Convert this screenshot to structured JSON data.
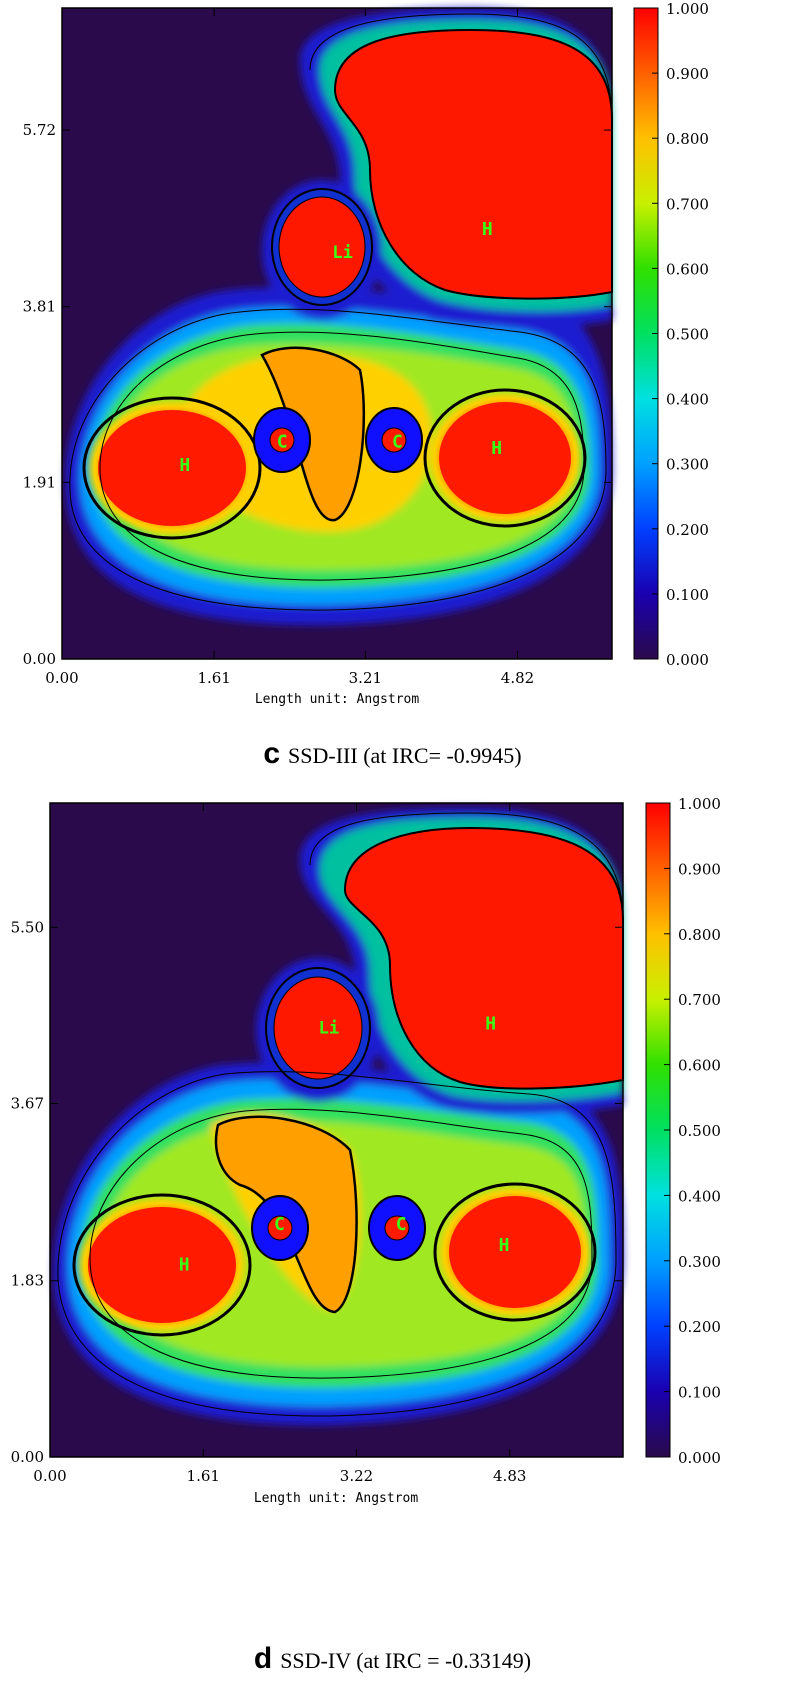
{
  "chart_data": [
    {
      "type": "heatmap",
      "title": "",
      "xlabel": "Length unit: Angstrom",
      "ylabel": "",
      "x_ticks": [
        "0.00",
        "1.61",
        "3.21",
        "4.82"
      ],
      "y_ticks": [
        "0.00",
        "1.91",
        "3.81",
        "5.72"
      ],
      "xlim": [
        0.0,
        5.82
      ],
      "ylim": [
        0.0,
        7.04
      ],
      "colorbar_ticks": [
        "0.000",
        "0.100",
        "0.200",
        "0.300",
        "0.400",
        "0.500",
        "0.600",
        "0.700",
        "0.800",
        "0.900",
        "1.000"
      ],
      "colorbar_range": [
        0.0,
        1.0
      ],
      "atoms": [
        {
          "label": "Li",
          "x": 2.97,
          "y": 4.4
        },
        {
          "label": "H",
          "x": 4.5,
          "y": 4.65
        },
        {
          "label": "C",
          "x": 2.33,
          "y": 2.35
        },
        {
          "label": "C",
          "x": 3.55,
          "y": 2.35
        },
        {
          "label": "H",
          "x": 1.3,
          "y": 2.1
        },
        {
          "label": "H",
          "x": 4.6,
          "y": 2.28
        }
      ],
      "caption_letter": "c",
      "caption": "SSD-III (at IRC=  -0.9945)"
    },
    {
      "type": "heatmap",
      "title": "",
      "xlabel": "Length unit: Angstrom",
      "ylabel": "",
      "x_ticks": [
        "0.00",
        "1.61",
        "3.22",
        "4.83"
      ],
      "y_ticks": [
        "0.00",
        "1.83",
        "3.67",
        "5.50"
      ],
      "xlim": [
        0.0,
        6.02
      ],
      "ylim": [
        0.0,
        6.79
      ],
      "colorbar_ticks": [
        "0.000",
        "0.100",
        "0.200",
        "0.300",
        "0.400",
        "0.500",
        "0.600",
        "0.700",
        "0.800",
        "0.900",
        "1.000"
      ],
      "colorbar_range": [
        0.0,
        1.0
      ],
      "atoms": [
        {
          "label": "Li",
          "x": 2.93,
          "y": 4.46
        },
        {
          "label": "H",
          "x": 4.63,
          "y": 4.5
        },
        {
          "label": "C",
          "x": 2.41,
          "y": 2.42
        },
        {
          "label": "C",
          "x": 3.69,
          "y": 2.42
        },
        {
          "label": "H",
          "x": 1.41,
          "y": 2.0
        },
        {
          "label": "H",
          "x": 4.77,
          "y": 2.2
        }
      ],
      "caption_letter": "d",
      "caption": "SSD-IV (at IRC =  -0.33149)"
    }
  ],
  "colors": {
    "background": "#2a0a4a",
    "colormap": [
      "#2a0a4a",
      "#0000ff",
      "#00a0ff",
      "#00f0f0",
      "#00d040",
      "#90e020",
      "#f0f000",
      "#ffb000",
      "#ff6000",
      "#ff0000"
    ],
    "atom_label": "#39ff14"
  }
}
